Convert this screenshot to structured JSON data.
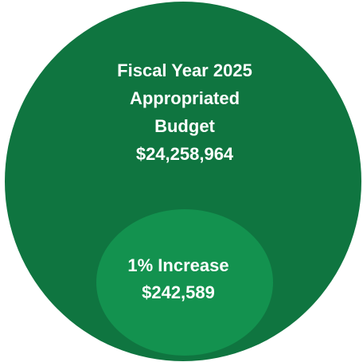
{
  "colors": {
    "outer_circle": "#0f7540",
    "inner_circle": "#13924f",
    "text": "#ffffff",
    "background": "#ffffff"
  },
  "outer": {
    "line1": "Fiscal Year 2025",
    "line2": "Appropriated",
    "line3": "Budget",
    "amount": "$24,258,964"
  },
  "inner": {
    "line1": "1% Increase",
    "amount": "$242,589"
  }
}
